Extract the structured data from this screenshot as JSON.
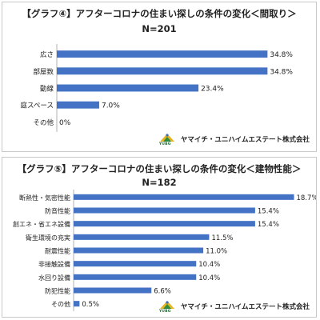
{
  "brand": {
    "company": "ヤマイチ・ユニハイムエステート株式会社",
    "logo_text": "YUBG",
    "colors": {
      "bar": "#4472c4",
      "axis": "#b0b0b0",
      "logo_green": "#2e8b3e",
      "logo_yellow": "#e6b422",
      "logo_blue": "#3a6fc4"
    }
  },
  "chart_data": [
    {
      "type": "bar",
      "orientation": "horizontal",
      "title": "【グラフ④】アフターコロナの住まい探しの条件の変化＜間取り＞",
      "subtitle": "N=201",
      "categories": [
        "広さ",
        "部屋数",
        "動線",
        "庭スペース",
        "その他"
      ],
      "values": [
        34.8,
        34.8,
        23.4,
        7.0,
        0.0
      ],
      "labels": [
        "34.8%",
        "34.8%",
        "23.4%",
        "7.0%",
        "0%"
      ],
      "xlim": [
        0,
        37
      ],
      "grid": false,
      "legend": "none"
    },
    {
      "type": "bar",
      "orientation": "horizontal",
      "title": "【グラフ⑤】アフターコロナの住まい探しの条件の変化＜建物性能＞",
      "subtitle": "N=182",
      "categories": [
        "断熱性・気密性能",
        "防音性能",
        "創エネ・省エネ設備",
        "衛生環境の充実",
        "耐震性能",
        "非接触設備",
        "水回り設備",
        "防犯性能",
        "その他"
      ],
      "values": [
        18.7,
        15.4,
        15.4,
        11.5,
        11.0,
        10.4,
        10.4,
        6.6,
        0.5
      ],
      "labels": [
        "18.7%",
        "15.4%",
        "15.4%",
        "11.5%",
        "11.0%",
        "10.4%",
        "10.4%",
        "6.6%",
        "0.5%"
      ],
      "xlim": [
        0,
        18.8
      ],
      "grid": false,
      "legend": "none"
    }
  ]
}
